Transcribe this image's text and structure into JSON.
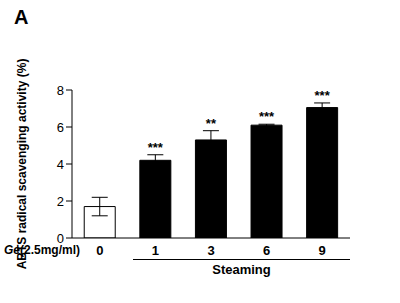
{
  "chart_data": {
    "type": "bar",
    "title": "A",
    "y_label": "ABTS radical scavenging activity (%)",
    "x_label": "Ge(2.5mg/ml)",
    "group_label": "Steaming",
    "categories": [
      "0",
      "1",
      "3",
      "6",
      "9"
    ],
    "values": [
      1.7,
      4.2,
      5.3,
      6.1,
      7.05
    ],
    "errors": [
      0.5,
      0.3,
      0.5,
      0.05,
      0.25
    ],
    "significance": [
      null,
      "***",
      "**",
      "***",
      "***"
    ],
    "colors": [
      "#ffffff",
      "#000000",
      "#000000",
      "#000000",
      "#000000"
    ],
    "ylim": [
      0,
      8
    ],
    "yticks": [
      0,
      2,
      4,
      6,
      8
    ],
    "grid": false
  }
}
